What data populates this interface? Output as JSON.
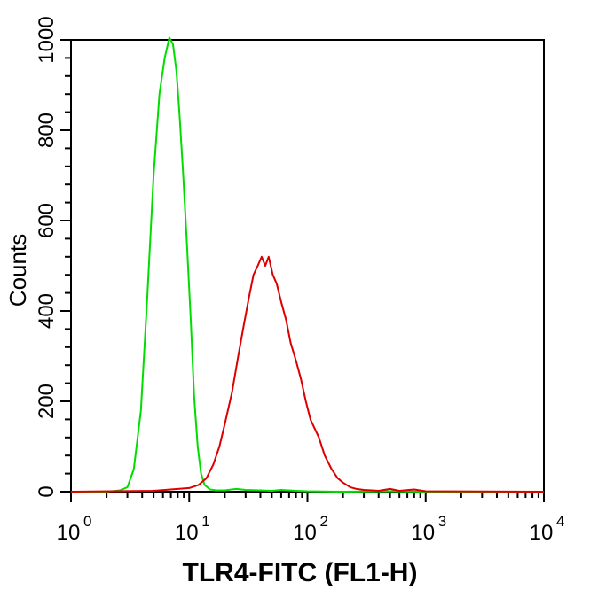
{
  "chart_data": {
    "type": "line",
    "title": "",
    "xlabel": "TLR4-FITC (FL1-H)",
    "ylabel": "Counts",
    "xscale": "log",
    "xlim": [
      1,
      10000
    ],
    "ylim": [
      0,
      1000
    ],
    "x_ticks": [
      {
        "base": "10",
        "exp": "0",
        "value": 1
      },
      {
        "base": "10",
        "exp": "1",
        "value": 10
      },
      {
        "base": "10",
        "exp": "2",
        "value": 100
      },
      {
        "base": "10",
        "exp": "3",
        "value": 1000
      },
      {
        "base": "10",
        "exp": "4",
        "value": 10000
      }
    ],
    "y_ticks": [
      "0",
      "200",
      "400",
      "600",
      "800",
      "1000"
    ],
    "grid": false,
    "legend": "none",
    "series": [
      {
        "color": "#00dd00",
        "x": [
          1,
          2,
          2.6,
          3.0,
          3.4,
          3.9,
          4.4,
          5.0,
          5.6,
          6.2,
          6.8,
          7.3,
          7.8,
          8.3,
          8.9,
          9.6,
          10.3,
          11.0,
          11.8,
          12.6,
          13.5,
          15,
          17,
          20,
          25,
          30,
          40,
          50,
          60,
          80,
          100,
          200,
          500,
          1000,
          10000
        ],
        "y": [
          0,
          0,
          3,
          10,
          50,
          180,
          420,
          700,
          880,
          960,
          1005,
          990,
          930,
          830,
          700,
          540,
          380,
          210,
          100,
          40,
          15,
          5,
          3,
          3,
          6,
          4,
          3,
          2,
          4,
          2,
          1,
          0,
          1,
          0,
          0
        ]
      },
      {
        "color": "#dd0000",
        "x": [
          1,
          5,
          10,
          12,
          14,
          16,
          18,
          20,
          23,
          26,
          29,
          32,
          35,
          38,
          41,
          44,
          47,
          51,
          55,
          60,
          66,
          72,
          80,
          88,
          97,
          106,
          115,
          125,
          140,
          160,
          180,
          200,
          230,
          260,
          300,
          350,
          400,
          500,
          600,
          800,
          1000,
          10000
        ],
        "y": [
          0,
          2,
          8,
          15,
          30,
          60,
          100,
          150,
          220,
          300,
          370,
          430,
          480,
          500,
          520,
          500,
          520,
          480,
          460,
          420,
          380,
          330,
          290,
          250,
          200,
          160,
          140,
          120,
          80,
          50,
          30,
          20,
          10,
          6,
          4,
          3,
          2,
          6,
          2,
          5,
          1,
          0
        ]
      }
    ]
  }
}
